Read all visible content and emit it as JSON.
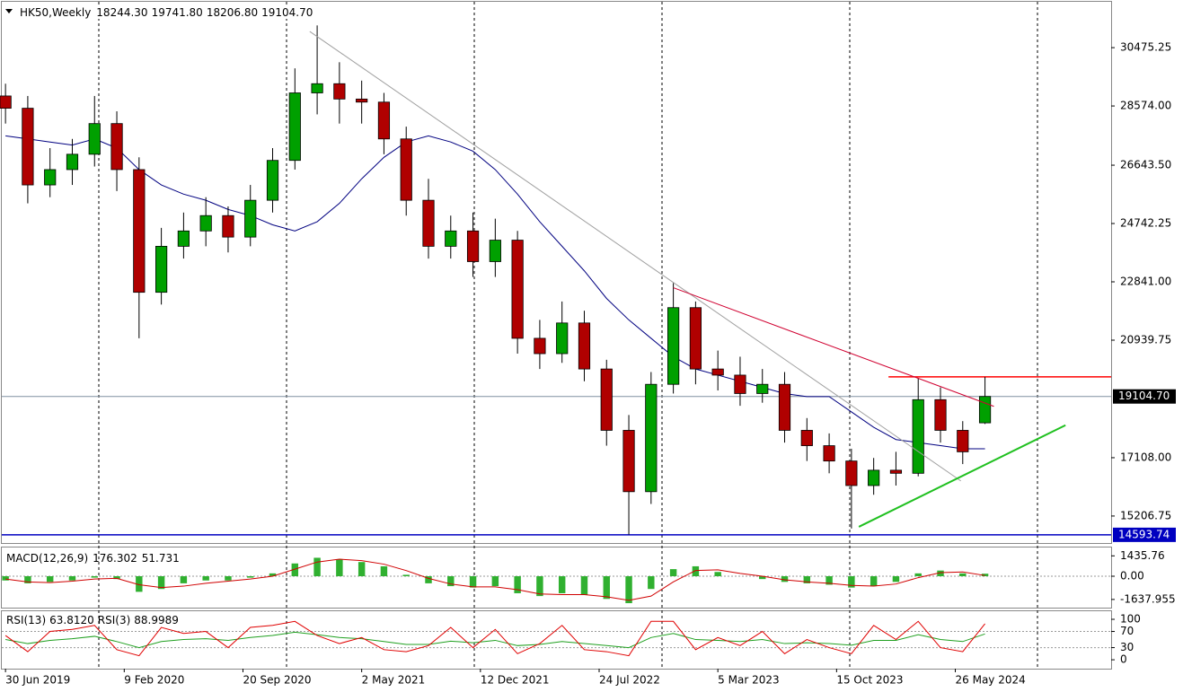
{
  "chart_data": {
    "type": "candlestick",
    "title": "HK50,Weekly",
    "last_labels": [
      "18244.30",
      "19741.80",
      "18206.80",
      "19104.70"
    ],
    "xlim": [
      -1,
      298
    ],
    "ylim": [
      14327,
      31970
    ],
    "yticks": [
      30475.25,
      {
        "value": 28574,
        "label": "28574.00"
      },
      {
        "value": 26643.5,
        "label": "26643.50"
      },
      24742.25,
      {
        "value": 22841,
        "label": "22841.00"
      },
      20939.75,
      {
        "value": 17108,
        "label": "17108.00"
      },
      15206.75
    ],
    "xticks": [
      {
        "value": 0,
        "label": "30 Jun 2019"
      },
      {
        "value": 32,
        "label": "9 Feb 2020"
      },
      {
        "value": 64,
        "label": "20 Sep 2020"
      },
      {
        "value": 96,
        "label": "2 May 2021"
      },
      {
        "value": 128,
        "label": "12 Dec 2021"
      },
      {
        "value": 160,
        "label": "24 Jul 2022"
      },
      {
        "value": 192,
        "label": "5 Mar 2023"
      },
      {
        "value": 224,
        "label": "15 Oct 2023"
      },
      {
        "value": 256,
        "label": "26 May 2024"
      }
    ],
    "candles": {
      "up_color": "#00a000",
      "down_color": "#b00000",
      "x": [
        0,
        6,
        12,
        18,
        24,
        30,
        36,
        42,
        48,
        54,
        60,
        66,
        72,
        78,
        84,
        90,
        96,
        102,
        108,
        114,
        120,
        126,
        132,
        138,
        144,
        150,
        156,
        162,
        168,
        174,
        180,
        186,
        192,
        198,
        204,
        210,
        216,
        222,
        228,
        234,
        240,
        246,
        252,
        258,
        264
      ],
      "open": [
        28900,
        28500,
        26000,
        26500,
        27000,
        28000,
        26500,
        22500,
        24000,
        24500,
        25000,
        24300,
        25500,
        26800,
        29000,
        29300,
        28800,
        28700,
        27500,
        25500,
        24000,
        24500,
        23500,
        24200,
        21000,
        20500,
        21500,
        20000,
        18000,
        16000,
        19500,
        22000,
        20000,
        19800,
        19200,
        19500,
        18000,
        17500,
        17000,
        16200,
        16700,
        16600,
        19000,
        18000,
        18244.3
      ],
      "high": [
        29300,
        28900,
        27200,
        27500,
        28900,
        28400,
        26900,
        24600,
        25100,
        25600,
        25300,
        26000,
        27200,
        29800,
        31200,
        30000,
        29400,
        29000,
        27900,
        26200,
        25000,
        25100,
        24900,
        24500,
        21600,
        22200,
        21900,
        20300,
        18500,
        19900,
        22800,
        22200,
        20600,
        20400,
        20000,
        19900,
        18400,
        17900,
        17400,
        17100,
        17300,
        19700,
        19400,
        18300,
        19741.8
      ],
      "low": [
        28000,
        25400,
        25600,
        26000,
        26600,
        25800,
        21000,
        22100,
        23600,
        24000,
        23800,
        24000,
        25100,
        26500,
        28300,
        28000,
        28000,
        27000,
        25000,
        23600,
        23600,
        23000,
        23000,
        20500,
        20000,
        20200,
        19600,
        17500,
        14600,
        15600,
        19200,
        19500,
        19300,
        18800,
        18900,
        17600,
        17000,
        16600,
        14800,
        15900,
        16200,
        16500,
        17600,
        16900,
        18206.8
      ],
      "close": [
        28500,
        26000,
        26500,
        27000,
        28000,
        26500,
        22500,
        24000,
        24500,
        25000,
        24300,
        25500,
        26800,
        29000,
        29300,
        28800,
        28700,
        27500,
        25500,
        24000,
        24500,
        23500,
        24200,
        21000,
        20500,
        21500,
        20000,
        18000,
        16000,
        19500,
        22000,
        20000,
        19800,
        19200,
        19500,
        18000,
        17500,
        17000,
        16200,
        16700,
        16600,
        19000,
        18000,
        17300,
        19104.7
      ]
    },
    "ma": {
      "color": "#000080",
      "values": [
        27600,
        27500,
        27400,
        27300,
        27500,
        27200,
        26500,
        26000,
        25700,
        25500,
        25200,
        25000,
        24700,
        24500,
        24800,
        25400,
        26200,
        26900,
        27400,
        27600,
        27400,
        27100,
        26500,
        25700,
        24800,
        24000,
        23200,
        22300,
        21600,
        21000,
        20400,
        20000,
        19800,
        19600,
        19400,
        19200,
        19100,
        19100,
        18600,
        18100,
        17700,
        17600,
        17500,
        17400,
        17400
      ]
    },
    "price_line": {
      "value": 19104.7,
      "label": "19104.70",
      "color": "#8090a0"
    },
    "hlines": [
      {
        "value": 14593.74,
        "color": "#0000c0",
        "from": -1
      },
      {
        "value": 19741.8,
        "color": "#ff0000",
        "from": 238
      }
    ],
    "drawings": [
      {
        "color": "#a0a0a0",
        "width": 1,
        "points": [
          [
            82,
            31003
          ],
          [
            257.5,
            16350
          ]
        ]
      },
      {
        "color": "#d00030",
        "width": 1,
        "points": [
          [
            180,
            22650
          ],
          [
            266.4,
            18782
          ]
        ]
      },
      {
        "color": "#20c020",
        "width": 2,
        "points": [
          [
            230,
            14855
          ],
          [
            285.7,
            18167
          ]
        ]
      }
    ],
    "macd": {
      "name": "MACD(12,26,9)",
      "ylim": [
        -2215,
        2025
      ],
      "yticks": [
        1435.76,
        {
          "value": 0,
          "label": "0.00"
        },
        -1637.955
      ],
      "histogram": {
        "color": "#30b030",
        "values": [
          -300,
          -500,
          -400,
          -300,
          -100,
          -200,
          -1100,
          -900,
          -500,
          -300,
          -300,
          -100,
          200,
          900,
          1300,
          1200,
          1000,
          700,
          100,
          -500,
          -700,
          -800,
          -700,
          -1200,
          -1400,
          -1200,
          -1300,
          -1600,
          -1900,
          -900,
          500,
          700,
          300,
          0,
          -200,
          -400,
          -500,
          -600,
          -800,
          -700,
          -400,
          200,
          400,
          200,
          176.302
        ]
      },
      "signal": {
        "color": "#d00000",
        "values": [
          -200,
          -400,
          -450,
          -350,
          -200,
          -150,
          -600,
          -800,
          -700,
          -500,
          -350,
          -200,
          0,
          500,
          1000,
          1200,
          1100,
          850,
          400,
          -150,
          -550,
          -750,
          -750,
          -950,
          -1250,
          -1300,
          -1300,
          -1450,
          -1700,
          -1400,
          -400,
          400,
          450,
          200,
          0,
          -250,
          -400,
          -500,
          -650,
          -700,
          -550,
          -100,
          250,
          300,
          51.731
        ]
      }
    },
    "rsi": {
      "ylim": [
        -22,
        120
      ],
      "yticks": [
        100,
        70,
        30,
        0
      ],
      "levels": [
        70,
        30
      ],
      "series": [
        {
          "name": "RSI(13)",
          "last_label": "63.8120",
          "color": "#20a020",
          "values": [
            50,
            40,
            48,
            52,
            58,
            45,
            30,
            45,
            50,
            52,
            48,
            55,
            60,
            68,
            62,
            55,
            52,
            45,
            38,
            38,
            46,
            42,
            48,
            35,
            38,
            45,
            40,
            35,
            30,
            55,
            65,
            50,
            48,
            45,
            50,
            40,
            42,
            40,
            36,
            48,
            48,
            62,
            50,
            45,
            63.812
          ]
        },
        {
          "name": "RSI(3)",
          "last_label": "88.9989",
          "color": "#e00000",
          "values": [
            60,
            20,
            70,
            75,
            85,
            25,
            10,
            80,
            65,
            70,
            30,
            80,
            85,
            95,
            60,
            40,
            55,
            25,
            20,
            35,
            80,
            30,
            75,
            15,
            40,
            85,
            25,
            20,
            10,
            95,
            95,
            25,
            55,
            35,
            70,
            15,
            50,
            30,
            15,
            85,
            50,
            95,
            30,
            20,
            88.9989
          ]
        }
      ]
    }
  }
}
